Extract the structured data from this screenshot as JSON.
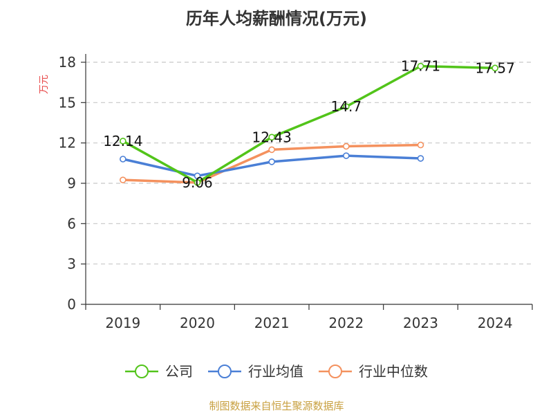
{
  "chart_data": {
    "type": "line",
    "title": "历年人均薪酬情况(万元)",
    "ylabel": "万元",
    "xlabel": "",
    "categories": [
      "2019",
      "2020",
      "2021",
      "2022",
      "2023",
      "2024"
    ],
    "ylim": [
      0,
      18
    ],
    "yticks": [
      0,
      3,
      6,
      9,
      12,
      15,
      18
    ],
    "grid": true,
    "legend_position": "bottom",
    "series": [
      {
        "name": "公司",
        "color": "#52c41a",
        "values": [
          12.14,
          9.06,
          12.43,
          14.7,
          17.71,
          17.57
        ],
        "data_labels": [
          "12.14",
          "9.06",
          "12.43",
          "14.7",
          "17.71",
          "17.57"
        ]
      },
      {
        "name": "行业均值",
        "color": "#4a7fd6",
        "values": [
          10.8,
          9.55,
          10.6,
          11.05,
          10.85,
          null
        ],
        "data_labels": null
      },
      {
        "name": "行业中位数",
        "color": "#f4915e",
        "values": [
          9.25,
          9.05,
          11.5,
          11.75,
          11.85,
          null
        ],
        "data_labels": null
      }
    ]
  },
  "footer": {
    "source": "制图数据来自恒生聚源数据库"
  },
  "colors": {
    "title": "#333333",
    "ylabel": "#e84a4a",
    "axis": "#333333",
    "grid": "#c8c8c8",
    "source": "#c8a040"
  }
}
